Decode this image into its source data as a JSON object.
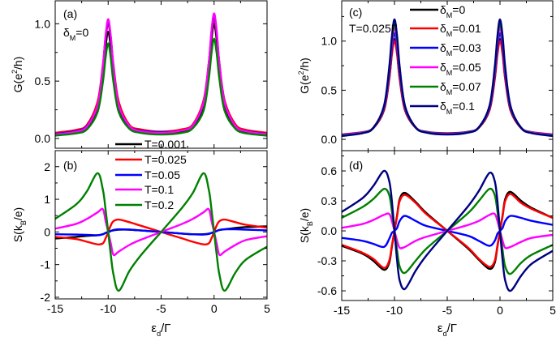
{
  "chart_data": [
    {
      "type": "line",
      "panel": "(a)",
      "annotation": {
        "pre": "δ",
        "sub": "M",
        "post": "=0"
      },
      "ylabel": {
        "pre": "G(e",
        "sup": "2",
        "post": "/h)"
      },
      "xlim": [
        -15,
        5
      ],
      "ylim": [
        -0.085,
        1.2
      ],
      "yticks": [
        "0.0",
        "0.5",
        "1.0"
      ],
      "yticks_values": [
        0,
        0.5,
        1.0
      ],
      "yminor_step": 0.25,
      "grid": false,
      "x": [
        -15,
        -13,
        -12,
        -11,
        -10.5,
        -10.25,
        -10,
        -9.75,
        -9.5,
        -9,
        -8,
        -7,
        -5,
        -3,
        -2,
        -1,
        -0.5,
        -0.25,
        0,
        0.25,
        0.5,
        1,
        2,
        3,
        5
      ],
      "series": [
        {
          "color": "#000000",
          "y": [
            0.035,
            0.056,
            0.097,
            0.264,
            0.56,
            0.797,
            0.93,
            0.798,
            0.56,
            0.265,
            0.101,
            0.061,
            0.047,
            0.064,
            0.107,
            0.284,
            0.602,
            0.858,
            1.0,
            0.857,
            0.601,
            0.283,
            0.103,
            0.059,
            0.036
          ]
        },
        {
          "color": "#ff0000",
          "y": [
            0.05,
            0.075,
            0.12,
            0.32,
            0.64,
            0.87,
            1.0,
            0.87,
            0.64,
            0.32,
            0.12,
            0.08,
            0.06,
            0.08,
            0.125,
            0.33,
            0.66,
            0.9,
            1.05,
            0.9,
            0.66,
            0.33,
            0.125,
            0.075,
            0.05
          ]
        },
        {
          "color": "#0000ff",
          "y": [
            0.04,
            0.065,
            0.11,
            0.29,
            0.62,
            0.88,
            1.02,
            0.88,
            0.62,
            0.29,
            0.11,
            0.07,
            0.055,
            0.07,
            0.115,
            0.31,
            0.65,
            0.92,
            1.07,
            0.92,
            0.65,
            0.31,
            0.11,
            0.065,
            0.04
          ]
        },
        {
          "color": "#ff00ff",
          "y": [
            0.035,
            0.06,
            0.105,
            0.29,
            0.625,
            0.89,
            1.04,
            0.89,
            0.625,
            0.29,
            0.11,
            0.065,
            0.05,
            0.07,
            0.115,
            0.31,
            0.655,
            0.935,
            1.09,
            0.935,
            0.655,
            0.31,
            0.11,
            0.063,
            0.037
          ]
        },
        {
          "color": "#008000",
          "y": [
            0.025,
            0.045,
            0.08,
            0.23,
            0.49,
            0.7,
            0.83,
            0.7,
            0.49,
            0.23,
            0.085,
            0.05,
            0.035,
            0.05,
            0.09,
            0.24,
            0.52,
            0.74,
            0.87,
            0.74,
            0.52,
            0.24,
            0.085,
            0.045,
            0.025
          ]
        }
      ]
    },
    {
      "type": "line",
      "panel": "(b)",
      "ylabel": {
        "pre": "S(k",
        "sub": "B",
        "post": "/e)"
      },
      "xlabel": {
        "pre": "ε",
        "sub": "d",
        "post": "/Γ"
      },
      "xlim": [
        -15,
        5
      ],
      "xticks": [
        "-15",
        "-10",
        "-5",
        "0",
        "5"
      ],
      "xticks_values": [
        -15,
        -10,
        -5,
        0,
        5
      ],
      "ylim": [
        -2.05,
        2.49
      ],
      "yticks": [
        "-2",
        "-1",
        "0",
        "1",
        "2"
      ],
      "yticks_values": [
        -2,
        -1,
        0,
        1,
        2
      ],
      "yminor_step": 0.5,
      "grid": false,
      "legend_position": "top-center",
      "x": [
        -15,
        -13,
        -12,
        -11,
        -10.5,
        -10.25,
        -10,
        -9.75,
        -9.5,
        -9,
        -8,
        -7,
        -5,
        -3,
        -2,
        -1,
        -0.5,
        -0.25,
        0,
        0.25,
        0.5,
        1,
        2,
        3,
        5
      ],
      "series": [
        {
          "name": "T=0.001",
          "color": "#000000",
          "y": [
            -0.2,
            -0.15,
            -0.12,
            -0.1,
            -0.07,
            -0.03,
            0,
            0.03,
            0.05,
            0.07,
            0.07,
            0.05,
            0,
            -0.05,
            -0.07,
            -0.07,
            -0.05,
            -0.03,
            0,
            0.03,
            0.06,
            0.08,
            0.12,
            0.15,
            0.17
          ]
        },
        {
          "name": "T=0.025",
          "color": "#ff0000",
          "y": [
            -0.15,
            -0.22,
            -0.3,
            -0.38,
            -0.35,
            -0.2,
            0,
            0.2,
            0.33,
            0.38,
            0.3,
            0.2,
            0,
            -0.2,
            -0.3,
            -0.38,
            -0.35,
            -0.2,
            0,
            0.2,
            0.33,
            0.38,
            0.3,
            0.22,
            0.13
          ]
        },
        {
          "name": "T=0.05",
          "color": "#0000ff",
          "y": [
            -0.07,
            -0.08,
            -0.09,
            -0.1,
            -0.07,
            -0.03,
            0,
            0.03,
            0.06,
            0.08,
            0.07,
            0.05,
            0,
            -0.05,
            -0.07,
            -0.08,
            -0.06,
            -0.03,
            0,
            0.03,
            0.06,
            0.08,
            0.08,
            0.07,
            0.05
          ]
        },
        {
          "name": "T=0.1",
          "color": "#ff00ff",
          "y": [
            0.1,
            0.25,
            0.4,
            0.6,
            0.7,
            0.35,
            0,
            -0.35,
            -0.7,
            -0.6,
            -0.4,
            -0.25,
            0,
            0.25,
            0.4,
            0.6,
            0.7,
            0.35,
            0,
            -0.35,
            -0.7,
            -0.6,
            -0.4,
            -0.25,
            -0.13
          ]
        },
        {
          "name": "T=0.2",
          "color": "#008000",
          "y": [
            0.4,
            0.85,
            1.25,
            1.8,
            1.3,
            0.7,
            0,
            -0.7,
            -1.3,
            -1.8,
            -1.2,
            -0.75,
            0,
            0.75,
            1.2,
            1.8,
            1.3,
            0.7,
            0,
            -0.7,
            -1.3,
            -1.8,
            -1.25,
            -0.85,
            -0.45
          ]
        }
      ]
    },
    {
      "type": "line",
      "panel": "(c)",
      "annotation": {
        "pre": "T=0.025Γ"
      },
      "ylabel": {
        "pre": "G(e",
        "sup": "2",
        "post": "/h)"
      },
      "xlim": [
        -15,
        5
      ],
      "ylim": [
        -0.115,
        1.41
      ],
      "yticks": [
        "0.0",
        "0.5",
        "1.0"
      ],
      "yticks_values": [
        0,
        0.5,
        1.0
      ],
      "yminor_step": 0.25,
      "grid": false,
      "legend_position": "top-right",
      "x": [
        -15,
        -13,
        -12,
        -11,
        -10.5,
        -10.25,
        -10,
        -9.75,
        -9.5,
        -9,
        -8,
        -7,
        -5,
        -3,
        -2,
        -1,
        -0.5,
        -0.25,
        0,
        0.25,
        0.5,
        1,
        2,
        3,
        5
      ],
      "series": [
        {
          "name": {
            "pre": "δ",
            "sub": "M",
            "post": "=0"
          },
          "color": "#000000",
          "y": [
            0.046,
            0.07,
            0.114,
            0.295,
            0.617,
            0.875,
            1.02,
            0.876,
            0.618,
            0.296,
            0.118,
            0.075,
            0.058,
            0.075,
            0.118,
            0.296,
            0.618,
            0.876,
            1.02,
            0.875,
            0.617,
            0.295,
            0.114,
            0.07,
            0.046
          ]
        },
        {
          "name": {
            "pre": "δ",
            "sub": "M",
            "post": "=0.01"
          },
          "color": "#ff0000",
          "y": [
            0.05,
            0.074,
            0.117,
            0.294,
            0.607,
            0.859,
            1.0,
            0.86,
            0.608,
            0.295,
            0.121,
            0.078,
            0.062,
            0.078,
            0.121,
            0.295,
            0.608,
            0.86,
            1.0,
            0.859,
            0.607,
            0.294,
            0.117,
            0.074,
            0.05
          ]
        },
        {
          "name": {
            "pre": "δ",
            "sub": "M",
            "post": "=0.03"
          },
          "color": "#0000ff",
          "y": [
            0.047,
            0.072,
            0.119,
            0.311,
            0.653,
            0.927,
            1.08,
            0.928,
            0.654,
            0.312,
            0.123,
            0.077,
            0.059,
            0.077,
            0.123,
            0.312,
            0.654,
            0.928,
            1.08,
            0.927,
            0.653,
            0.311,
            0.119,
            0.072,
            0.047
          ]
        },
        {
          "name": {
            "pre": "δ",
            "sub": "M",
            "post": "=0.05"
          },
          "color": "#ff00ff",
          "y": [
            0.043,
            0.07,
            0.12,
            0.324,
            0.686,
            0.977,
            1.14,
            0.978,
            0.687,
            0.325,
            0.124,
            0.075,
            0.056,
            0.075,
            0.124,
            0.325,
            0.687,
            0.978,
            1.14,
            0.977,
            0.686,
            0.324,
            0.12,
            0.07,
            0.043
          ]
        },
        {
          "name": {
            "pre": "δ",
            "sub": "M",
            "post": "=0.07"
          },
          "color": "#008000",
          "y": [
            0.039,
            0.066,
            0.119,
            0.331,
            0.708,
            1.011,
            1.18,
            1.012,
            0.709,
            0.332,
            0.123,
            0.072,
            0.052,
            0.072,
            0.123,
            0.332,
            0.709,
            1.012,
            1.18,
            1.011,
            0.708,
            0.331,
            0.119,
            0.066,
            0.039
          ]
        },
        {
          "name": {
            "pre": "δ",
            "sub": "M",
            "post": "=0.1"
          },
          "color": "#000080",
          "y": [
            0.034,
            0.063,
            0.117,
            0.338,
            0.73,
            1.044,
            1.22,
            1.045,
            0.731,
            0.339,
            0.122,
            0.069,
            0.049,
            0.069,
            0.122,
            0.339,
            0.731,
            1.045,
            1.22,
            1.044,
            0.73,
            0.338,
            0.117,
            0.063,
            0.034
          ]
        }
      ]
    },
    {
      "type": "line",
      "panel": "(d)",
      "ylabel": {
        "pre": "S(k",
        "sub": "B",
        "post": "/e)"
      },
      "xlabel": {
        "pre": "ε",
        "sub": "d",
        "post": "/Γ"
      },
      "xlim": [
        -15,
        5
      ],
      "xticks": [
        "-15",
        "-10",
        "-5",
        "0",
        "5"
      ],
      "xticks_values": [
        -15,
        -10,
        -5,
        0,
        5
      ],
      "ylim": [
        -0.697,
        0.803
      ],
      "yticks": [
        "-0.6",
        "-0.3",
        "0.0",
        "0.3",
        "0.6"
      ],
      "yticks_values": [
        -0.6,
        -0.3,
        0,
        0.3,
        0.6
      ],
      "yminor_step": 0.15,
      "grid": false,
      "x": [
        -15,
        -13,
        -12,
        -11,
        -10.5,
        -10.25,
        -10,
        -9.75,
        -9.5,
        -9,
        -8,
        -7,
        -5,
        -3,
        -2,
        -1,
        -0.5,
        -0.25,
        0,
        0.25,
        0.5,
        1,
        2,
        3,
        5
      ],
      "series": [
        {
          "color": "#000000",
          "y": [
            -0.15,
            -0.23,
            -0.3,
            -0.39,
            -0.32,
            -0.16,
            0,
            0.16,
            0.32,
            0.38,
            0.29,
            0.18,
            0,
            -0.18,
            -0.29,
            -0.38,
            -0.32,
            -0.16,
            0,
            0.16,
            0.32,
            0.39,
            0.3,
            0.23,
            0.13
          ]
        },
        {
          "color": "#ff0000",
          "y": [
            -0.14,
            -0.22,
            -0.28,
            -0.37,
            -0.3,
            -0.15,
            0,
            0.15,
            0.3,
            0.36,
            0.28,
            0.17,
            0,
            -0.17,
            -0.28,
            -0.36,
            -0.3,
            -0.15,
            0,
            0.15,
            0.3,
            0.37,
            0.28,
            0.22,
            0.13
          ]
        },
        {
          "color": "#0000ff",
          "y": [
            -0.07,
            -0.1,
            -0.13,
            -0.16,
            -0.08,
            -0.02,
            0,
            0.03,
            0.1,
            0.15,
            0.1,
            0.05,
            0,
            -0.05,
            -0.1,
            -0.15,
            -0.1,
            -0.03,
            0,
            0.03,
            0.1,
            0.15,
            0.13,
            0.1,
            0.06
          ]
        },
        {
          "color": "#ff00ff",
          "y": [
            0.03,
            0.07,
            0.11,
            0.16,
            0.17,
            0.1,
            0,
            -0.1,
            -0.17,
            -0.16,
            -0.1,
            -0.06,
            0,
            0.06,
            0.1,
            0.16,
            0.17,
            0.1,
            0,
            -0.1,
            -0.17,
            -0.16,
            -0.11,
            -0.07,
            -0.04
          ]
        },
        {
          "color": "#008000",
          "y": [
            0.13,
            0.24,
            0.32,
            0.42,
            0.36,
            0.2,
            0,
            -0.2,
            -0.36,
            -0.42,
            -0.3,
            -0.18,
            0,
            0.18,
            0.3,
            0.42,
            0.36,
            0.2,
            0,
            -0.2,
            -0.36,
            -0.43,
            -0.32,
            -0.24,
            -0.14
          ]
        },
        {
          "color": "#000080",
          "y": [
            0.19,
            0.33,
            0.45,
            0.6,
            0.5,
            0.3,
            0,
            -0.3,
            -0.5,
            -0.58,
            -0.4,
            -0.25,
            0,
            0.25,
            0.4,
            0.58,
            0.5,
            0.3,
            0,
            -0.3,
            -0.5,
            -0.6,
            -0.45,
            -0.33,
            -0.2
          ]
        }
      ]
    }
  ]
}
